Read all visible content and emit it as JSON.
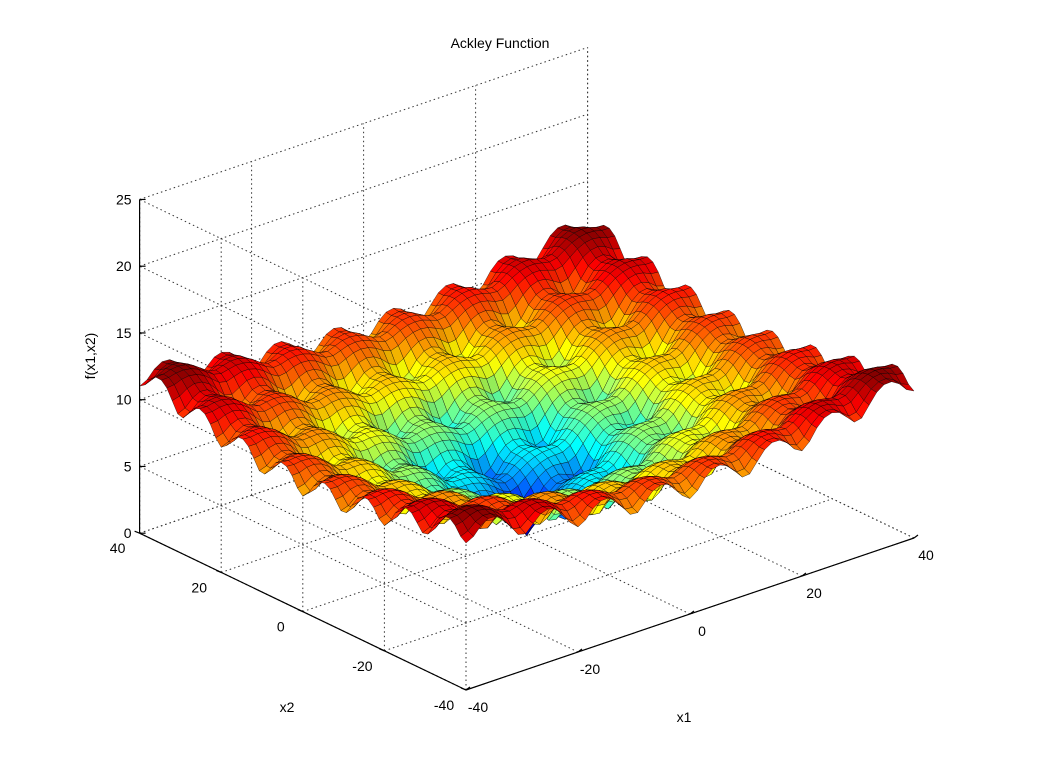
{
  "chart_data": {
    "type": "surface",
    "title": "Ackley Function",
    "xlabel": "x1",
    "ylabel": "x2",
    "zlabel": "f(x1,x2)",
    "function": "ackley",
    "xlim": [
      -40,
      40
    ],
    "ylim": [
      -40,
      40
    ],
    "zlim": [
      0,
      25
    ],
    "x_ticks": [
      -40,
      -20,
      0,
      20,
      40
    ],
    "y_ticks": [
      -40,
      -20,
      0,
      20,
      40
    ],
    "z_ticks": [
      0,
      5,
      10,
      15,
      20,
      25
    ],
    "x_tick_labels": [
      "-40",
      "-20",
      "0",
      "20",
      "40"
    ],
    "y_tick_labels": [
      "-40",
      "-20",
      "0",
      "20",
      "40"
    ],
    "z_tick_labels": [
      "0",
      "5",
      "10",
      "15",
      "20",
      "25"
    ],
    "grid": true,
    "colormap": "jet",
    "edge_color": "#000000",
    "minimum": {
      "x1": 0,
      "x2": 0,
      "f": 0
    }
  }
}
